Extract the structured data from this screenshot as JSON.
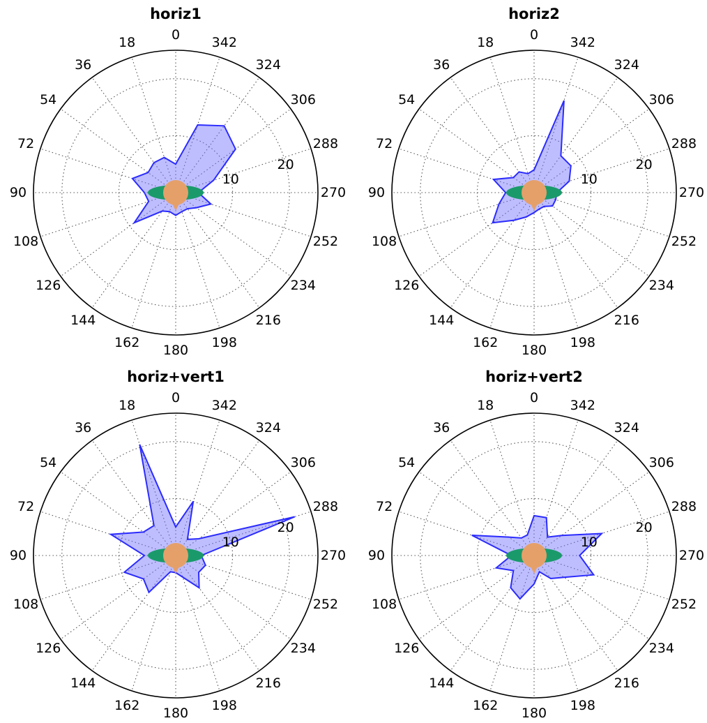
{
  "chart_data": [
    {
      "type": "polar-area",
      "title": "horiz1",
      "theta_labels": [
        "0",
        "18",
        "36",
        "54",
        "72",
        "90",
        "108",
        "126",
        "144",
        "162",
        "180",
        "198",
        "216",
        "234",
        "252",
        "270",
        "288",
        "306",
        "324",
        "342"
      ],
      "r_ticks": [
        "10",
        "20"
      ],
      "rmax": 25,
      "series": [
        {
          "values": [
            5,
            6.5,
            6.5,
            6,
            8,
            5.5,
            5,
            9,
            4,
            3.5,
            4,
            3.5,
            3.5,
            4.5,
            6.5,
            4,
            7,
            13,
            14.5,
            12.5
          ]
        }
      ]
    },
    {
      "type": "polar-area",
      "title": "horiz2",
      "theta_labels": [
        "0",
        "18",
        "36",
        "54",
        "72",
        "90",
        "108",
        "126",
        "144",
        "162",
        "180",
        "198",
        "216",
        "234",
        "252",
        "270",
        "288",
        "306",
        "324",
        "342"
      ],
      "r_ticks": [
        "10",
        "20"
      ],
      "rmax": 25,
      "series": [
        {
          "values": [
            4,
            3.5,
            4.5,
            4.5,
            7.5,
            5,
            6.5,
            9,
            6,
            4.5,
            3.5,
            3,
            3,
            4,
            4,
            4,
            6.5,
            8,
            8,
            17
          ]
        }
      ]
    },
    {
      "type": "polar-area",
      "title": "horiz+vert1",
      "theta_labels": [
        "0",
        "18",
        "36",
        "54",
        "72",
        "90",
        "108",
        "126",
        "144",
        "162",
        "180",
        "198",
        "216",
        "234",
        "252",
        "270",
        "288",
        "306",
        "324",
        "342"
      ],
      "r_ticks": [
        "10",
        "20"
      ],
      "rmax": 25,
      "series": [
        {
          "values": [
            5,
            20.5,
            6.5,
            7,
            12,
            5.5,
            9.5,
            7,
            8,
            3,
            3,
            4,
            7,
            5,
            5.5,
            4.5,
            22,
            5,
            3.5,
            10
          ]
        }
      ]
    },
    {
      "type": "polar-area",
      "title": "horiz+vert2",
      "theta_labels": [
        "0",
        "18",
        "36",
        "54",
        "72",
        "90",
        "108",
        "126",
        "144",
        "162",
        "180",
        "198",
        "216",
        "234",
        "252",
        "270",
        "288",
        "306",
        "324",
        "342"
      ],
      "r_ticks": [
        "10",
        "20"
      ],
      "rmax": 25,
      "series": [
        {
          "values": [
            7,
            3.8,
            3.8,
            5.5,
            11.5,
            4,
            7,
            4.5,
            7,
            8,
            5,
            3,
            5,
            6.5,
            11,
            8,
            12.5,
            6,
            4,
            7
          ]
        }
      ]
    }
  ],
  "colors": {
    "fill": "#b3b3fb",
    "line": "#2b2bff",
    "ellipse": "#1a9a6b",
    "circle": "#e5a06a",
    "grid": "#555555"
  }
}
